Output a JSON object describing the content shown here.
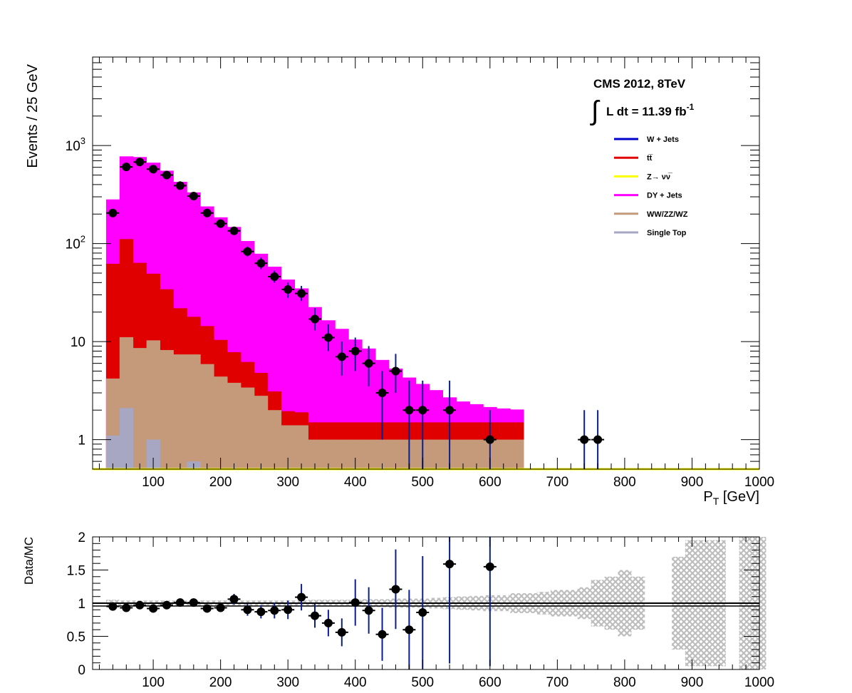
{
  "main_panel": {
    "ylabel": "Events / 25 GeV",
    "xlabel_main": "P",
    "xlabel_sub": "T",
    "xlabel_unit": " [GeV]",
    "x_ticks": [
      "100",
      "200",
      "300",
      "400",
      "500",
      "600",
      "700",
      "800",
      "900",
      "1000"
    ],
    "y_ticks": [
      {
        "base": "10",
        "exp": "3"
      },
      {
        "base": "10",
        "exp": "2"
      },
      {
        "base": "10",
        "exp": ""
      },
      {
        "base": "1",
        "exp": ""
      }
    ],
    "cms_label": "CMS 2012, 8TeV",
    "lumi_prefix": "L dt = 11.39 fb",
    "lumi_exp": "-1",
    "integral_symbol": "∫"
  },
  "ratio_panel": {
    "ylabel": "Data/MC",
    "y_ticks": [
      "0",
      "0.5",
      "1",
      "1.5",
      "2"
    ],
    "x_ticks": [
      "100",
      "200",
      "300",
      "400",
      "500",
      "600",
      "700",
      "800",
      "900",
      "1000"
    ]
  },
  "legend": [
    {
      "label": "W + Jets",
      "color": "#0000cc"
    },
    {
      "label": "tt̅",
      "color": "#e00000"
    },
    {
      "label": "Z→ νν̅",
      "color": "#ffff00"
    },
    {
      "label": "DY + Jets",
      "color": "#ff00ff"
    },
    {
      "label": "WW/ZZ/WZ",
      "color": "#c49a7a"
    },
    {
      "label": "Single Top",
      "color": "#a7a6c3"
    }
  ],
  "chart_data": [
    {
      "type": "bar",
      "stacked": true,
      "log_y": true,
      "xlabel": "P_T [GeV]",
      "ylabel": "Events / 25 GeV",
      "xlim": [
        10,
        1000
      ],
      "ylim": [
        0.5,
        8000
      ],
      "bin_edges": [
        30,
        50,
        70,
        90,
        110,
        130,
        150,
        170,
        190,
        210,
        230,
        250,
        270,
        290,
        310,
        330,
        350,
        370,
        390,
        410,
        430,
        450,
        470,
        490,
        510,
        530,
        550,
        570,
        590,
        610,
        630,
        650
      ],
      "series": [
        {
          "name": "Single Top",
          "color": "#a7a6c3",
          "values": [
            1.1,
            2.1,
            0.5,
            1.0,
            0.5,
            0.5,
            0.6,
            0.5,
            0.5,
            0.5,
            0.5,
            0.5,
            0.5,
            0.5,
            0.5,
            0.5,
            0.5,
            0.5,
            0.5,
            0.5,
            0.5,
            0.5,
            0.5,
            0.5,
            0.5,
            0.5,
            0.5,
            0.5,
            0.5,
            0.5,
            0.5
          ]
        },
        {
          "name": "WW/ZZ/WZ",
          "color": "#c49a7a",
          "values": [
            3.1,
            9.0,
            8.1,
            9.3,
            7.7,
            6.9,
            6.8,
            5.4,
            3.9,
            3.3,
            2.9,
            2.3,
            1.5,
            0.9,
            0.9,
            0.5,
            0.5,
            0.5,
            0.5,
            0.5,
            0.5,
            0.5,
            0.5,
            0.5,
            0.5,
            0.5,
            0.5,
            0.5,
            0.5,
            0.5,
            0.5
          ]
        },
        {
          "name": "tt̅",
          "color": "#e00000",
          "values": [
            58,
            100,
            55,
            39,
            26,
            14.5,
            10.5,
            8.5,
            6.0,
            4.0,
            2.8,
            2.0,
            1.1,
            0.55,
            0.5,
            0.5,
            0.5,
            0.5,
            0.5,
            0.5,
            0.5,
            0.5,
            0.5,
            0.5,
            0.5,
            0.5,
            0.5,
            0.5,
            0.5,
            0.5,
            0.5
          ]
        },
        {
          "name": "DY + Jets",
          "color": "#ff00ff",
          "values": [
            220,
            665,
            700,
            620,
            520,
            405,
            315,
            225,
            175,
            140,
            100,
            74,
            55,
            41,
            33,
            21,
            15,
            12,
            9,
            7,
            5,
            3.8,
            2.8,
            2.2,
            1.7,
            1.2,
            0.95,
            0.8,
            0.65,
            0.58,
            0.53
          ]
        },
        {
          "name": "Z→ νν̅",
          "color": "#ffff00",
          "values": []
        },
        {
          "name": "W + Jets",
          "color": "#0000cc",
          "values": []
        }
      ],
      "data_points": {
        "x": [
          40,
          60,
          80,
          100,
          120,
          140,
          160,
          180,
          200,
          220,
          240,
          260,
          280,
          300,
          320,
          340,
          360,
          380,
          400,
          420,
          440,
          460,
          480,
          500,
          540,
          600,
          740,
          760
        ],
        "y": [
          205,
          605,
          680,
          575,
          500,
          390,
          305,
          205,
          160,
          135,
          83,
          63,
          46,
          34,
          31,
          17,
          11,
          7,
          8,
          6,
          3,
          5,
          2,
          2,
          2,
          1,
          1,
          1
        ],
        "yerr_up": [
          15,
          25,
          27,
          25,
          23,
          20,
          18,
          15,
          13,
          12,
          10,
          9,
          7,
          6,
          6,
          5,
          4,
          3,
          3,
          3,
          2,
          2.5,
          2,
          2,
          2,
          1,
          1,
          1
        ],
        "yerr_down": [
          14,
          24,
          26,
          24,
          22,
          19,
          17,
          14,
          12,
          11,
          9,
          8,
          6,
          6,
          5,
          4,
          3,
          2.5,
          3,
          2.5,
          2,
          2,
          1.5,
          1.5,
          1.5,
          0.99,
          0.99,
          0.99
        ]
      }
    },
    {
      "type": "scatter",
      "xlabel": "",
      "ylabel": "Data/MC",
      "xlim": [
        10,
        1000
      ],
      "ylim": [
        0,
        2
      ],
      "reference_line": 1,
      "uncertainty_band": {
        "x": [
          40,
          60,
          80,
          100,
          120,
          140,
          160,
          180,
          200,
          220,
          240,
          260,
          280,
          300,
          320,
          340,
          360,
          380,
          400,
          420,
          440,
          460,
          480,
          500,
          520,
          540,
          560,
          580,
          600,
          620,
          640,
          660,
          680,
          700,
          720,
          740,
          760,
          780,
          800,
          820,
          880,
          900,
          920,
          940,
          980,
          1000
        ],
        "half_width": [
          0.05,
          0.04,
          0.04,
          0.04,
          0.04,
          0.04,
          0.04,
          0.04,
          0.04,
          0.04,
          0.04,
          0.04,
          0.04,
          0.04,
          0.04,
          0.05,
          0.05,
          0.05,
          0.05,
          0.06,
          0.06,
          0.07,
          0.07,
          0.07,
          0.08,
          0.09,
          0.1,
          0.11,
          0.12,
          0.12,
          0.15,
          0.15,
          0.17,
          0.2,
          0.2,
          0.24,
          0.35,
          0.4,
          0.5,
          0.4,
          0.7,
          0.95,
          0.95,
          0.95,
          1.0,
          1.0
        ]
      },
      "x": [
        40,
        60,
        80,
        100,
        120,
        140,
        160,
        180,
        200,
        220,
        240,
        260,
        280,
        300,
        320,
        340,
        360,
        380,
        400,
        420,
        440,
        460,
        480,
        500,
        540,
        600
      ],
      "y": [
        0.95,
        0.93,
        0.97,
        0.92,
        0.97,
        1.01,
        1.01,
        0.92,
        0.93,
        1.06,
        0.9,
        0.87,
        0.89,
        0.9,
        1.09,
        0.81,
        0.7,
        0.56,
        1.01,
        0.89,
        0.53,
        1.21,
        0.6,
        0.86,
        1.59,
        1.55
      ],
      "yerr": [
        0.04,
        0.04,
        0.04,
        0.04,
        0.04,
        0.04,
        0.05,
        0.05,
        0.06,
        0.08,
        0.09,
        0.1,
        0.12,
        0.14,
        0.2,
        0.18,
        0.2,
        0.21,
        0.35,
        0.35,
        0.4,
        0.6,
        0.6,
        0.85,
        1.5,
        1.5
      ]
    }
  ]
}
